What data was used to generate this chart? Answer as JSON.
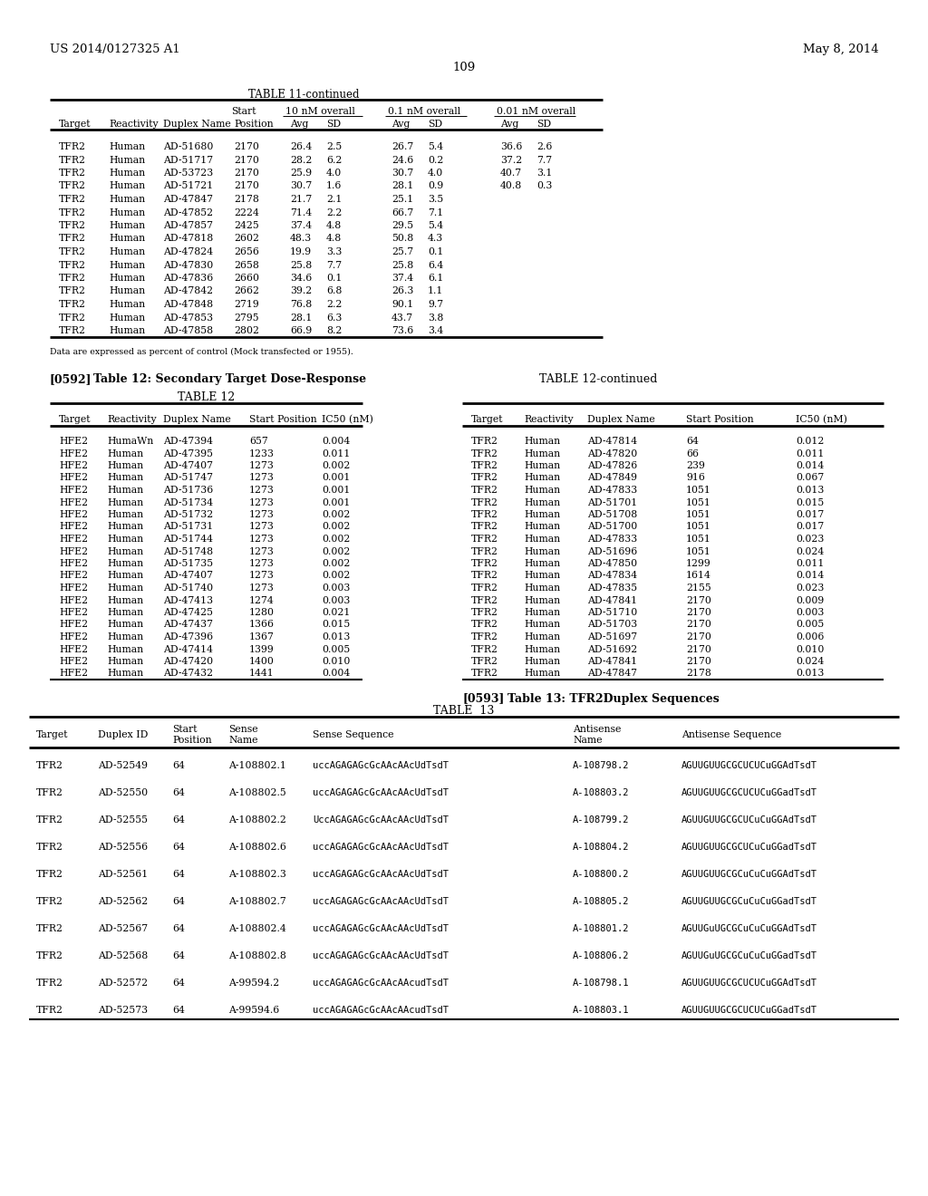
{
  "header_left": "US 2014/0127325 A1",
  "header_right": "May 8, 2014",
  "page_number": "109",
  "table11_title": "TABLE 11-continued",
  "table11_cols": [
    "Target",
    "Reactivity",
    "Duplex Name",
    "Position",
    "Avg",
    "SD",
    "Avg",
    "SD",
    "Avg",
    "SD"
  ],
  "table11_data": [
    [
      "TFR2",
      "Human",
      "AD-51680",
      "2170",
      "26.4",
      "2.5",
      "26.7",
      "5.4",
      "36.6",
      "2.6"
    ],
    [
      "TFR2",
      "Human",
      "AD-51717",
      "2170",
      "28.2",
      "6.2",
      "24.6",
      "0.2",
      "37.2",
      "7.7"
    ],
    [
      "TFR2",
      "Human",
      "AD-53723",
      "2170",
      "25.9",
      "4.0",
      "30.7",
      "4.0",
      "40.7",
      "3.1"
    ],
    [
      "TFR2",
      "Human",
      "AD-51721",
      "2170",
      "30.7",
      "1.6",
      "28.1",
      "0.9",
      "40.8",
      "0.3"
    ],
    [
      "TFR2",
      "Human",
      "AD-47847",
      "2178",
      "21.7",
      "2.1",
      "25.1",
      "3.5",
      "",
      ""
    ],
    [
      "TFR2",
      "Human",
      "AD-47852",
      "2224",
      "71.4",
      "2.2",
      "66.7",
      "7.1",
      "",
      ""
    ],
    [
      "TFR2",
      "Human",
      "AD-47857",
      "2425",
      "37.4",
      "4.8",
      "29.5",
      "5.4",
      "",
      ""
    ],
    [
      "TFR2",
      "Human",
      "AD-47818",
      "2602",
      "48.3",
      "4.8",
      "50.8",
      "4.3",
      "",
      ""
    ],
    [
      "TFR2",
      "Human",
      "AD-47824",
      "2656",
      "19.9",
      "3.3",
      "25.7",
      "0.1",
      "",
      ""
    ],
    [
      "TFR2",
      "Human",
      "AD-47830",
      "2658",
      "25.8",
      "7.7",
      "25.8",
      "6.4",
      "",
      ""
    ],
    [
      "TFR2",
      "Human",
      "AD-47836",
      "2660",
      "34.6",
      "0.1",
      "37.4",
      "6.1",
      "",
      ""
    ],
    [
      "TFR2",
      "Human",
      "AD-47842",
      "2662",
      "39.2",
      "6.8",
      "26.3",
      "1.1",
      "",
      ""
    ],
    [
      "TFR2",
      "Human",
      "AD-47848",
      "2719",
      "76.8",
      "2.2",
      "90.1",
      "9.7",
      "",
      ""
    ],
    [
      "TFR2",
      "Human",
      "AD-47853",
      "2795",
      "28.1",
      "6.3",
      "43.7",
      "3.8",
      "",
      ""
    ],
    [
      "TFR2",
      "Human",
      "AD-47858",
      "2802",
      "66.9",
      "8.2",
      "73.6",
      "3.4",
      "",
      ""
    ]
  ],
  "table11_footnote": "Data are expressed as percent of control (Mock transfected or 1955).",
  "ref0592": "[0592]",
  "table12_label": "Table 12: Secondary Target Dose-Response",
  "table12_title": "TABLE 12",
  "table12_cols": [
    "Target",
    "Reactivity",
    "Duplex Name",
    "Start Position",
    "IC50 (nM)"
  ],
  "table12_data": [
    [
      "HFE2",
      "HumaWn",
      "AD-47394",
      "657",
      "0.004"
    ],
    [
      "HFE2",
      "Human",
      "AD-47395",
      "1233",
      "0.011"
    ],
    [
      "HFE2",
      "Human",
      "AD-47407",
      "1273",
      "0.002"
    ],
    [
      "HFE2",
      "Human",
      "AD-51747",
      "1273",
      "0.001"
    ],
    [
      "HFE2",
      "Human",
      "AD-51736",
      "1273",
      "0.001"
    ],
    [
      "HFE2",
      "Human",
      "AD-51734",
      "1273",
      "0.001"
    ],
    [
      "HFE2",
      "Human",
      "AD-51732",
      "1273",
      "0.002"
    ],
    [
      "HFE2",
      "Human",
      "AD-51731",
      "1273",
      "0.002"
    ],
    [
      "HFE2",
      "Human",
      "AD-51744",
      "1273",
      "0.002"
    ],
    [
      "HFE2",
      "Human",
      "AD-51748",
      "1273",
      "0.002"
    ],
    [
      "HFE2",
      "Human",
      "AD-51735",
      "1273",
      "0.002"
    ],
    [
      "HFE2",
      "Human",
      "AD-47407",
      "1273",
      "0.002"
    ],
    [
      "HFE2",
      "Human",
      "AD-51740",
      "1273",
      "0.003"
    ],
    [
      "HFE2",
      "Human",
      "AD-47413",
      "1274",
      "0.003"
    ],
    [
      "HFE2",
      "Human",
      "AD-47425",
      "1280",
      "0.021"
    ],
    [
      "HFE2",
      "Human",
      "AD-47437",
      "1366",
      "0.015"
    ],
    [
      "HFE2",
      "Human",
      "AD-47396",
      "1367",
      "0.013"
    ],
    [
      "HFE2",
      "Human",
      "AD-47414",
      "1399",
      "0.005"
    ],
    [
      "HFE2",
      "Human",
      "AD-47420",
      "1400",
      "0.010"
    ],
    [
      "HFE2",
      "Human",
      "AD-47432",
      "1441",
      "0.004"
    ]
  ],
  "table12cont_title": "TABLE 12-continued",
  "table12cont_cols": [
    "Target",
    "Reactivity",
    "Duplex Name",
    "Start Position",
    "IC50 (nM)"
  ],
  "table12cont_data": [
    [
      "TFR2",
      "Human",
      "AD-47814",
      "64",
      "0.012"
    ],
    [
      "TFR2",
      "Human",
      "AD-47820",
      "66",
      "0.011"
    ],
    [
      "TFR2",
      "Human",
      "AD-47826",
      "239",
      "0.014"
    ],
    [
      "TFR2",
      "Human",
      "AD-47849",
      "916",
      "0.067"
    ],
    [
      "TFR2",
      "Human",
      "AD-47833",
      "1051",
      "0.013"
    ],
    [
      "TFR2",
      "Human",
      "AD-51701",
      "1051",
      "0.015"
    ],
    [
      "TFR2",
      "Human",
      "AD-51708",
      "1051",
      "0.017"
    ],
    [
      "TFR2",
      "Human",
      "AD-51700",
      "1051",
      "0.017"
    ],
    [
      "TFR2",
      "Human",
      "AD-47833",
      "1051",
      "0.023"
    ],
    [
      "TFR2",
      "Human",
      "AD-51696",
      "1051",
      "0.024"
    ],
    [
      "TFR2",
      "Human",
      "AD-47850",
      "1299",
      "0.011"
    ],
    [
      "TFR2",
      "Human",
      "AD-47834",
      "1614",
      "0.014"
    ],
    [
      "TFR2",
      "Human",
      "AD-47835",
      "2155",
      "0.023"
    ],
    [
      "TFR2",
      "Human",
      "AD-47841",
      "2170",
      "0.009"
    ],
    [
      "TFR2",
      "Human",
      "AD-51710",
      "2170",
      "0.003"
    ],
    [
      "TFR2",
      "Human",
      "AD-51703",
      "2170",
      "0.005"
    ],
    [
      "TFR2",
      "Human",
      "AD-51697",
      "2170",
      "0.006"
    ],
    [
      "TFR2",
      "Human",
      "AD-51692",
      "2170",
      "0.010"
    ],
    [
      "TFR2",
      "Human",
      "AD-47841",
      "2170",
      "0.024"
    ],
    [
      "TFR2",
      "Human",
      "AD-47847",
      "2178",
      "0.013"
    ]
  ],
  "ref0593": "[0593]",
  "table13_label": "Table 13: TFR2Duplex Sequences",
  "table13_title": "TABLE  13",
  "table13_cols": [
    "Target",
    "Duplex ID",
    "Start\nPosition",
    "Sense\nName",
    "Sense Sequence",
    "Antisense\nName",
    "Antisense Sequence"
  ],
  "table13_data": [
    [
      "TFR2",
      "AD-52549",
      "64",
      "A-108802.1",
      "uccAGAGAGcGcAAcAAcUdTsdT",
      "A-108798.2",
      "AGUUGUUGCGCUCUCuGGAdTsdT"
    ],
    [
      "TFR2",
      "AD-52550",
      "64",
      "A-108802.5",
      "uccAGAGAGcGcAAcAAcUdTsdT",
      "A-108803.2",
      "AGUUGUUGCGCUCUCuGGadTsdT"
    ],
    [
      "TFR2",
      "AD-52555",
      "64",
      "A-108802.2",
      "UccAGAGAGcGcAAcAAcUdTsdT",
      "A-108799.2",
      "AGUUGUUGCGCUCuCuGGAdTsdT"
    ],
    [
      "TFR2",
      "AD-52556",
      "64",
      "A-108802.6",
      "uccAGAGAGcGcAAcAAcUdTsdT",
      "A-108804.2",
      "AGUUGUUGCGCUCuCuGGadTsdT"
    ],
    [
      "TFR2",
      "AD-52561",
      "64",
      "A-108802.3",
      "uccAGAGAGcGcAAcAAcUdTsdT",
      "A-108800.2",
      "AGUUGUUGCGCuCuCuGGAdTsdT"
    ],
    [
      "TFR2",
      "AD-52562",
      "64",
      "A-108802.7",
      "uccAGAGAGcGcAAcAAcUdTsdT",
      "A-108805.2",
      "AGUUGUUGCGCuCuCuGGadTsdT"
    ],
    [
      "TFR2",
      "AD-52567",
      "64",
      "A-108802.4",
      "uccAGAGAGcGcAAcAAcUdTsdT",
      "A-108801.2",
      "AGUUGuUGCGCuCuCuGGAdTsdT"
    ],
    [
      "TFR2",
      "AD-52568",
      "64",
      "A-108802.8",
      "uccAGAGAGcGcAAcAAcUdTsdT",
      "A-108806.2",
      "AGUUGuUGCGCuCuCuGGadTsdT"
    ],
    [
      "TFR2",
      "AD-52572",
      "64",
      "A-99594.2",
      "uccAGAGAGcGcAAcAAcudTsdT",
      "A-108798.1",
      "AGUUGUUGCGCUCUCuGGAdTsdT"
    ],
    [
      "TFR2",
      "AD-52573",
      "64",
      "A-99594.6",
      "uccAGAGAGcGcAAcAAcudTsdT",
      "A-108803.1",
      "AGUUGUUGCGCUCUCuGGadTsdT"
    ]
  ],
  "bg_color": "#ffffff",
  "text_color": "#000000"
}
